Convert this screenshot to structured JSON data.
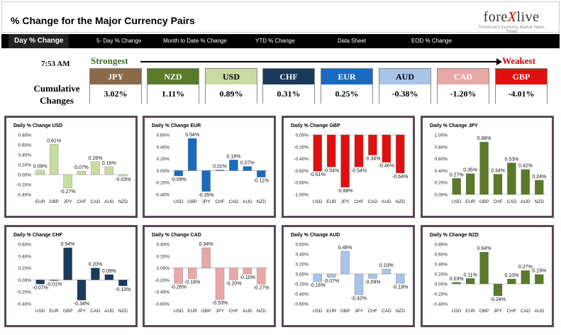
{
  "header": {
    "title": "% Change for the Major Currency Pairs",
    "logo_main": "fore",
    "logo_x": "X",
    "logo_end": "live",
    "logo_sub": "Tomorrow's Currency Market News Today"
  },
  "tabs": [
    {
      "label": "Day % Change",
      "active": true
    },
    {
      "label": "5- Day % Change",
      "active": false
    },
    {
      "label": "Month to Date % Change",
      "active": false
    },
    {
      "label": "YTD % Change",
      "active": false
    },
    {
      "label": "Data Sheet",
      "active": false
    },
    {
      "label": "EOD % Change",
      "active": false
    }
  ],
  "summary": {
    "time": "7:53 AM",
    "strongest": "Strongest",
    "weakest": "Weakest",
    "cumulative_line1": "Cumulative",
    "cumulative_line2": "Changes",
    "currencies": [
      {
        "name": "JPY",
        "value": "3.02%",
        "bg": "#8a6a4a",
        "fg": "#ffffff"
      },
      {
        "name": "NZD",
        "value": "1.11%",
        "bg": "#5a7a2a",
        "fg": "#ffffff"
      },
      {
        "name": "USD",
        "value": "0.89%",
        "bg": "#c8dca0",
        "fg": "#000000"
      },
      {
        "name": "CHF",
        "value": "0.31%",
        "bg": "#1a3a5a",
        "fg": "#ffffff"
      },
      {
        "name": "EUR",
        "value": "0.25%",
        "bg": "#1a6ac0",
        "fg": "#ffffff"
      },
      {
        "name": "AUD",
        "value": "-0.38%",
        "bg": "#a8c4e8",
        "fg": "#000000"
      },
      {
        "name": "CAD",
        "value": "-1.20%",
        "bg": "#e8a8a8",
        "fg": "#ffffff"
      },
      {
        "name": "GBP",
        "value": "-4.01%",
        "bg": "#e01010",
        "fg": "#ffffff"
      }
    ]
  },
  "chart_data": [
    {
      "type": "bar",
      "title": "Daily % Change USD",
      "categories": [
        "EUR",
        "GBP",
        "JPY",
        "CHF",
        "CAD",
        "AUD",
        "NZD"
      ],
      "values": [
        0.09,
        0.61,
        -0.27,
        0.07,
        0.26,
        0.16,
        -0.03
      ],
      "labels": [
        "0.09%",
        "0.61%",
        "-0.27%",
        "0.07%",
        "0.26%",
        "0.16%",
        "-0.03%"
      ],
      "ticks": [
        "0.80%",
        "0.60%",
        "0.40%",
        "0.20%",
        "0.00%",
        "-0.20%",
        "-0.40%"
      ],
      "ylim": [
        -0.4,
        0.8
      ],
      "color": "#c8dca0"
    },
    {
      "type": "bar",
      "title": "Daily % Change EUR",
      "categories": [
        "USD",
        "GBP",
        "JPY",
        "CHF",
        "CAD",
        "AUD",
        "NZD"
      ],
      "values": [
        -0.09,
        0.54,
        -0.35,
        0.01,
        0.18,
        0.07,
        -0.11
      ],
      "labels": [
        "-0.09%",
        "0.54%",
        "-0.35%",
        "0.01%",
        "0.18%",
        "0.07%",
        "-0.11%"
      ],
      "ticks": [
        "0.60%",
        "0.40%",
        "0.20%",
        "0.00%",
        "-0.20%",
        "-0.40%"
      ],
      "ylim": [
        -0.4,
        0.6
      ],
      "color": "#1a6ac0"
    },
    {
      "type": "bar",
      "title": "Daily % Change GBP",
      "categories": [
        "USD",
        "EUR",
        "JPY",
        "CHF",
        "CAD",
        "AUD",
        "NZD"
      ],
      "values": [
        -0.61,
        -0.54,
        -0.88,
        -0.54,
        -0.34,
        -0.46,
        -0.64
      ],
      "labels": [
        "-0.61%",
        "-0.54%",
        "-0.88%",
        "-0.54%",
        "-0.34%",
        "-0.46%",
        "-0.64%"
      ],
      "ticks": [
        "0.00%",
        "-0.20%",
        "-0.40%",
        "-0.60%",
        "-0.80%",
        "-1.00%"
      ],
      "ylim": [
        -1.0,
        0.0
      ],
      "color": "#e01010"
    },
    {
      "type": "bar",
      "title": "Daily % Change JPY",
      "categories": [
        "USD",
        "EUR",
        "GBP",
        "CHF",
        "CAD",
        "AUD",
        "NZD"
      ],
      "values": [
        0.27,
        0.35,
        0.88,
        0.34,
        0.53,
        0.42,
        0.24
      ],
      "labels": [
        "0.27%",
        "0.35%",
        "0.88%",
        "0.34%",
        "0.53%",
        "0.42%",
        "0.24%"
      ],
      "ticks": [
        "1.00%",
        "0.80%",
        "0.60%",
        "0.40%",
        "0.20%",
        "0.00%"
      ],
      "ylim": [
        0.0,
        1.0
      ],
      "color": "#5a7a2a"
    },
    {
      "type": "bar",
      "title": "Daily % Change CHF",
      "categories": [
        "USD",
        "EUR",
        "GBP",
        "JPY",
        "CAD",
        "AUD",
        "NZD"
      ],
      "values": [
        -0.07,
        -0.01,
        0.54,
        -0.34,
        0.2,
        0.09,
        -0.1
      ],
      "labels": [
        "-0.07%",
        "-0.01%",
        "0.54%",
        "-0.34%",
        "0.20%",
        "0.09%",
        "-0.10%"
      ],
      "ticks": [
        "0.60%",
        "0.40%",
        "0.20%",
        "0.00%",
        "-0.20%",
        "-0.40%"
      ],
      "ylim": [
        -0.4,
        0.6
      ],
      "color": "#1a3a5a"
    },
    {
      "type": "bar",
      "title": "Daily % Change CAD",
      "categories": [
        "USD",
        "EUR",
        "GBP",
        "JPY",
        "CHF",
        "AUD",
        "NZD"
      ],
      "values": [
        -0.26,
        -0.18,
        0.34,
        -0.53,
        -0.2,
        -0.1,
        -0.27
      ],
      "labels": [
        "-0.26%",
        "-0.18%",
        "0.34%",
        "-0.53%",
        "-0.20%",
        "-0.10%",
        "-0.27%"
      ],
      "ticks": [
        "0.40%",
        "0.20%",
        "0.00%",
        "-0.20%",
        "-0.40%",
        "-0.60%"
      ],
      "ylim": [
        -0.6,
        0.4
      ],
      "color": "#e8a8a8"
    },
    {
      "type": "bar",
      "title": "Daily % Change AUD",
      "categories": [
        "USD",
        "EUR",
        "GBP",
        "JPY",
        "CHF",
        "CAD",
        "NZD"
      ],
      "values": [
        -0.16,
        -0.07,
        0.46,
        -0.42,
        -0.09,
        0.1,
        -0.19
      ],
      "labels": [
        "-0.16%",
        "-0.07%",
        "0.46%",
        "-0.42%",
        "-0.09%",
        "0.10%",
        "-0.19%"
      ],
      "ticks": [
        "0.60%",
        "0.40%",
        "0.20%",
        "0.00%",
        "-0.20%",
        "-0.40%",
        "-0.60%"
      ],
      "ylim": [
        -0.6,
        0.6
      ],
      "color": "#a8c4e8"
    },
    {
      "type": "bar",
      "title": "Daily % Change NZD",
      "categories": [
        "USD",
        "EUR",
        "GBP",
        "JPY",
        "CHF",
        "CAD",
        "AUD"
      ],
      "values": [
        0.03,
        0.11,
        0.64,
        -0.24,
        0.1,
        0.27,
        0.19
      ],
      "labels": [
        "0.03%",
        "0.11%",
        "0.64%",
        "-0.24%",
        "0.10%",
        "0.27%",
        "0.19%"
      ],
      "ticks": [
        "0.80%",
        "0.60%",
        "0.40%",
        "0.20%",
        "0.00%",
        "-0.20%",
        "-0.40%"
      ],
      "ylim": [
        -0.4,
        0.8
      ],
      "color": "#5a7a2a"
    }
  ]
}
